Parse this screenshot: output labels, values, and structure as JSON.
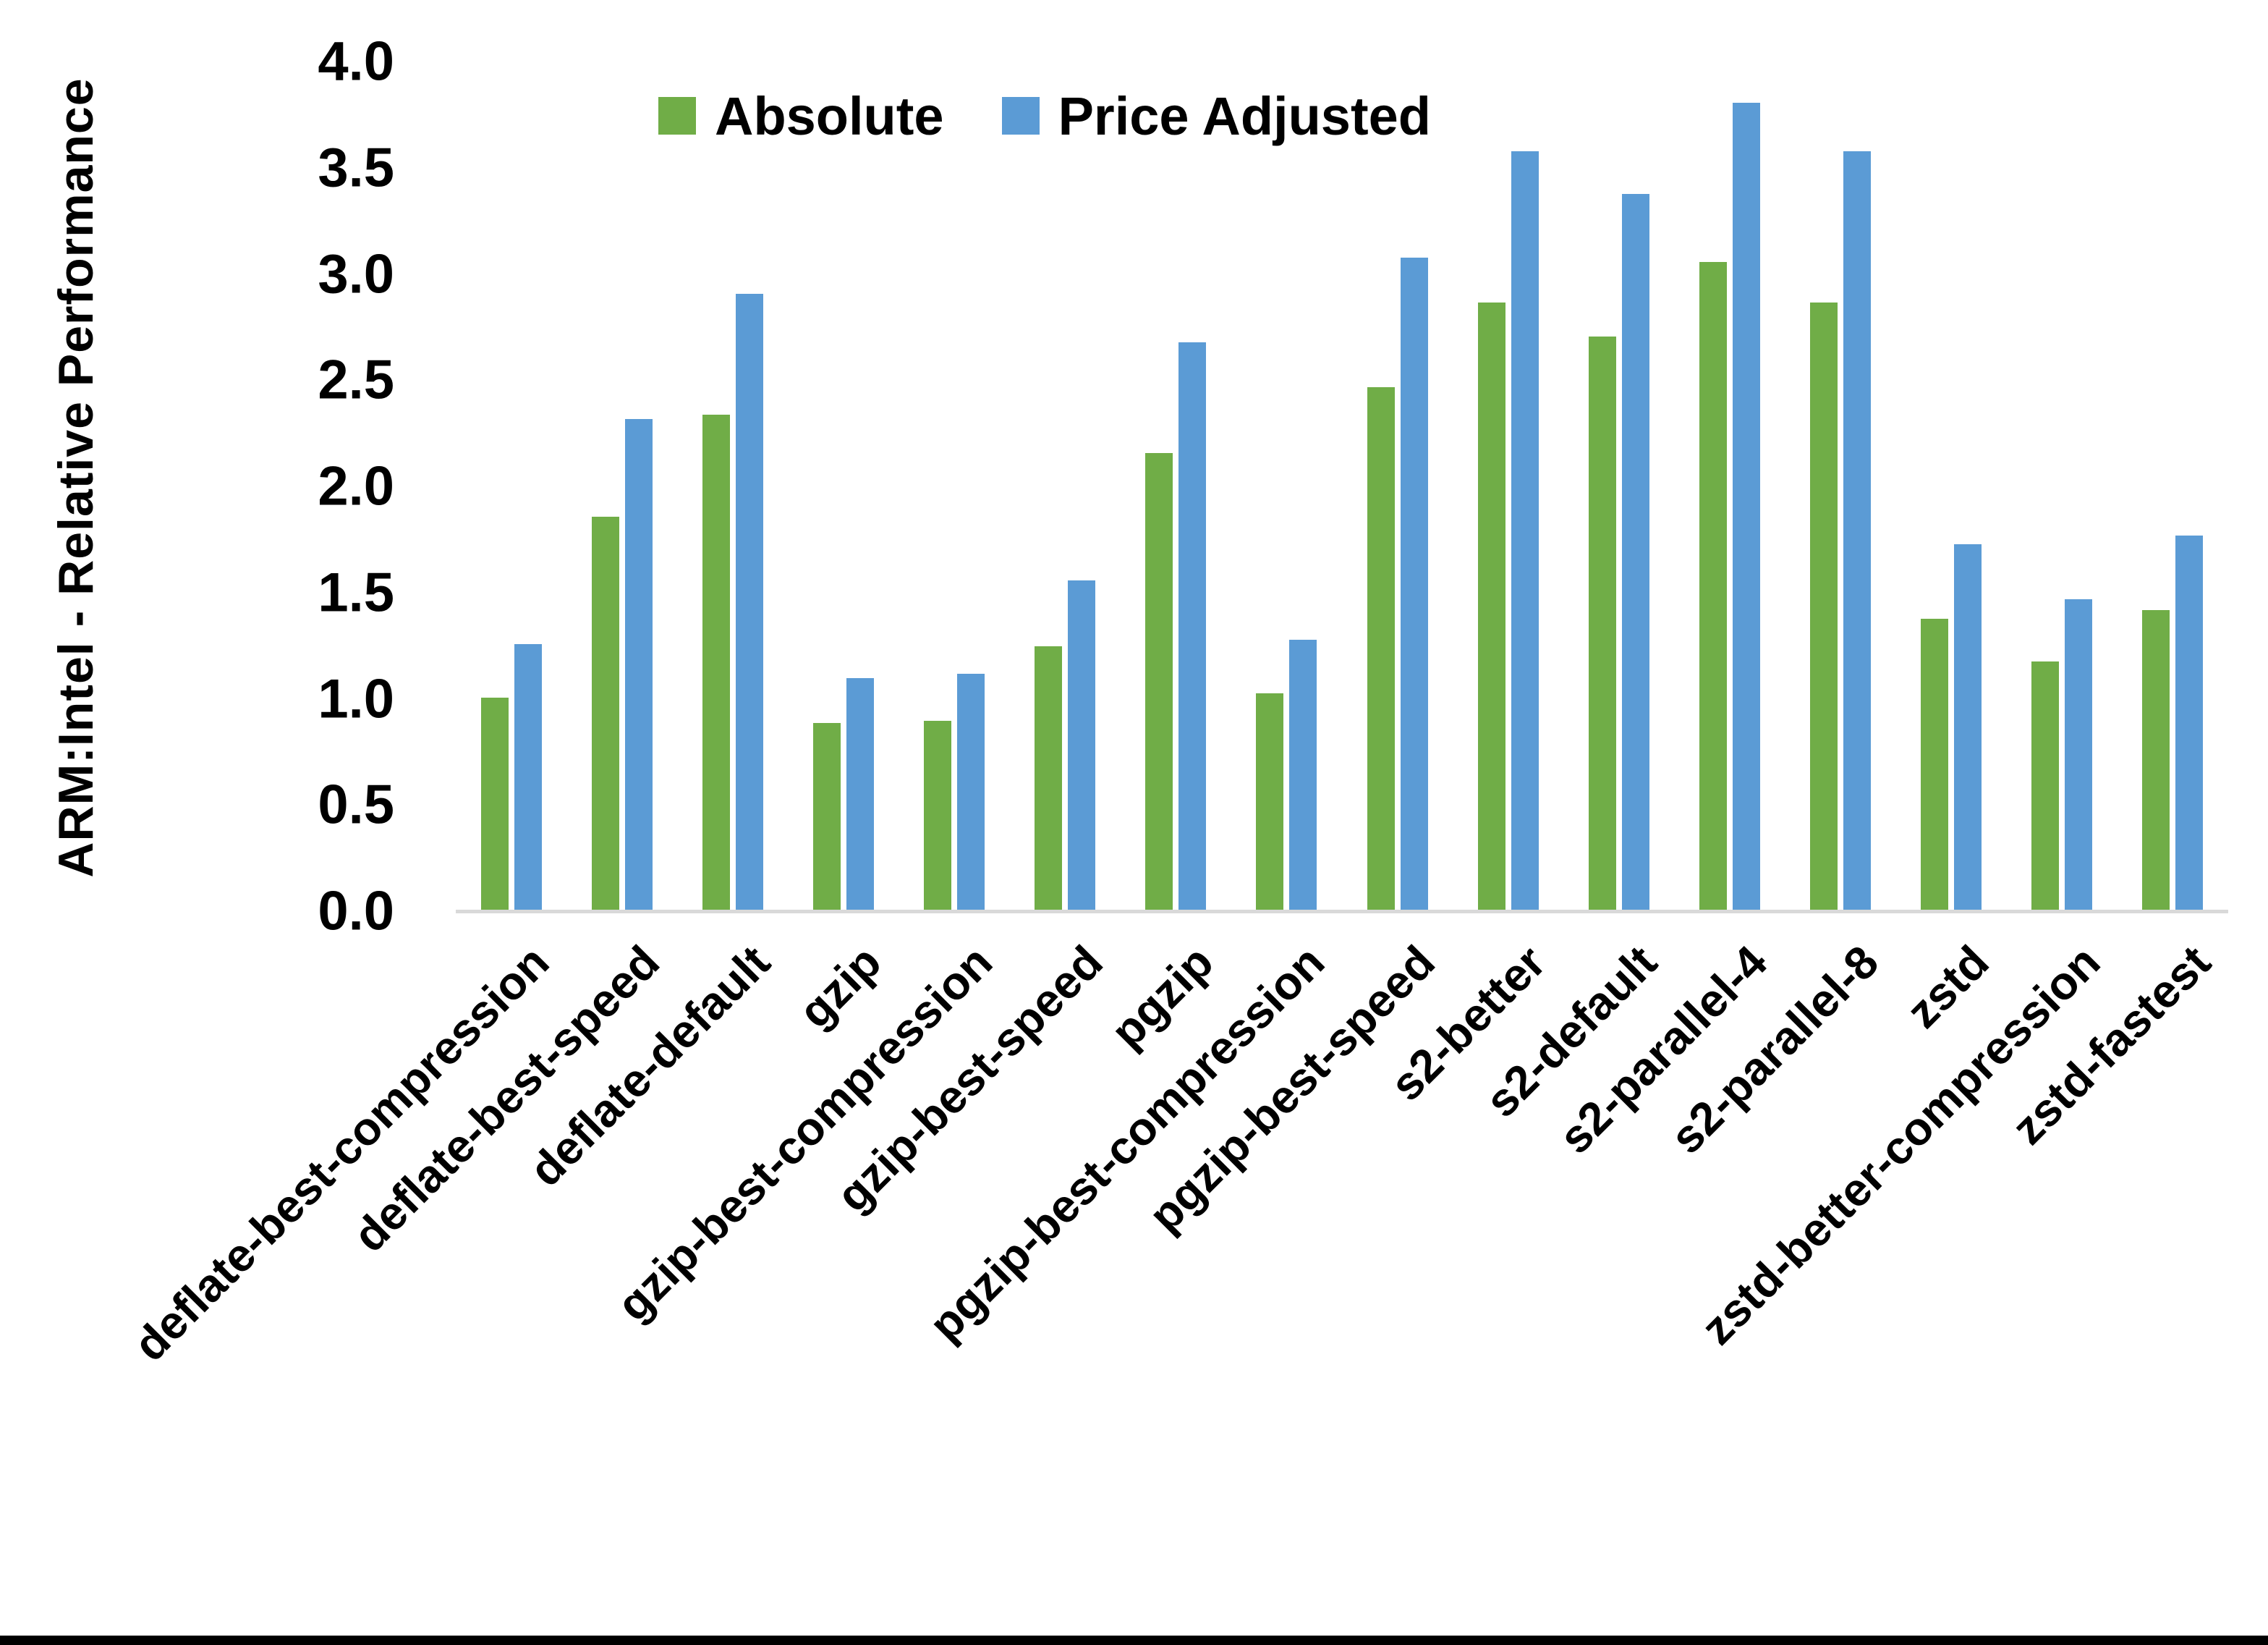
{
  "chart_data": {
    "type": "bar",
    "title": "",
    "xlabel": "",
    "ylabel": "ARM:Intel - Relative Performance",
    "ylim": [
      0.0,
      4.0
    ],
    "ytick_step": 0.5,
    "grid": false,
    "legend_position": "top",
    "background": "#ffffff",
    "axis_line_color": "#d9d9d9",
    "categories": [
      "deflate-best-compression",
      "deflate-best-speed",
      "deflate-default",
      "gzip",
      "gzip-best-compression",
      "gzip-best-speed",
      "pgzip",
      "pgzip-best-compression",
      "pgzip-best-speed",
      "s2-better",
      "s2-default",
      "s2-parallel-4",
      "s2-parallel-8",
      "zstd",
      "zstd-better-compression",
      "zstd-fastest"
    ],
    "series": [
      {
        "name": "Absolute",
        "color": "#70AD47",
        "values": [
          1.0,
          1.85,
          2.33,
          0.88,
          0.89,
          1.24,
          2.15,
          1.02,
          2.46,
          2.86,
          2.7,
          3.05,
          2.86,
          1.37,
          1.17,
          1.41
        ]
      },
      {
        "name": "Price Adjusted",
        "color": "#5B9BD5",
        "values": [
          1.25,
          2.31,
          2.9,
          1.09,
          1.11,
          1.55,
          2.67,
          1.27,
          3.07,
          3.57,
          3.37,
          3.8,
          3.57,
          1.72,
          1.46,
          1.76
        ]
      }
    ]
  }
}
